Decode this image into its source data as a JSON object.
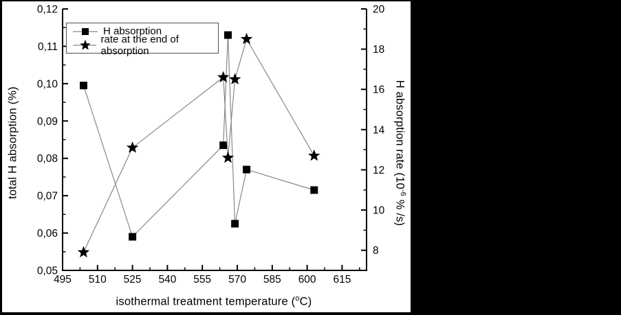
{
  "page": {
    "background": "#000000",
    "figure_background": "#ffffff"
  },
  "legend": {
    "items": [
      {
        "label": "H absorption",
        "marker": "square"
      },
      {
        "label": "rate at the end of absorption",
        "marker": "star"
      }
    ]
  },
  "axes": {
    "x": {
      "title_parts": {
        "pre": "isothermal treatment temperature (",
        "sup": "o",
        "post": "C)"
      },
      "range": [
        495,
        625.5
      ],
      "ticks": [
        495,
        510,
        525,
        540,
        555,
        570,
        585,
        600,
        615
      ],
      "tick_labels": [
        "495",
        "510",
        "525",
        "540",
        "555",
        "570",
        "585",
        "600",
        "615"
      ],
      "minor_ticks": [
        502.5,
        517.5,
        532.5,
        547.5,
        562.5,
        577.5,
        592.5,
        607.5,
        622.5
      ]
    },
    "y_left": {
      "title": "total H absorption (%)",
      "range": [
        0.05,
        0.12
      ],
      "ticks": [
        0.12,
        0.11,
        0.1,
        0.09,
        0.08,
        0.07,
        0.06,
        0.05
      ],
      "tick_labels": [
        "0,12",
        "0,11",
        "0,10",
        "0,09",
        "0,08",
        "0,07",
        "0,06",
        "0,05"
      ],
      "minor_ticks": [
        0.115,
        0.105,
        0.095,
        0.085,
        0.075,
        0.065,
        0.055
      ]
    },
    "y_right": {
      "title_parts": {
        "pre": "H absorption rate (10",
        "sup": "-6",
        "post": " % /s)"
      },
      "range": [
        7,
        20
      ],
      "ticks": [
        20,
        18,
        16,
        14,
        12,
        10,
        8
      ],
      "tick_labels": [
        "20",
        "18",
        "16",
        "14",
        "12",
        "10",
        "8"
      ],
      "minor_ticks": [
        19,
        17,
        15,
        13,
        11,
        9
      ]
    }
  },
  "chart_data": {
    "type": "line",
    "title": "",
    "xlabel": "isothermal treatment temperature (°C)",
    "ylabel_left": "total H absorption (%)",
    "ylabel_right": "H absorption rate (10^-6 % /s)",
    "xlim": [
      495,
      625.5
    ],
    "ylim_left": [
      0.05,
      0.12
    ],
    "ylim_right": [
      7,
      20
    ],
    "grid": false,
    "legend_position": "top-left-inside",
    "x": [
      504,
      525,
      564,
      566,
      569,
      574,
      603
    ],
    "series": [
      {
        "name": "H absorption",
        "axis": "left",
        "marker": "square",
        "values": [
          0.0995,
          0.059,
          0.0835,
          0.113,
          0.0625,
          0.077,
          0.0715
        ]
      },
      {
        "name": "rate at the end of absorption",
        "axis": "right",
        "marker": "star",
        "values": [
          7.9,
          13.1,
          16.6,
          12.6,
          16.5,
          18.5,
          12.7
        ]
      }
    ],
    "line_color": "#878787",
    "marker_color": "#000000",
    "axis_color": "#000000"
  }
}
